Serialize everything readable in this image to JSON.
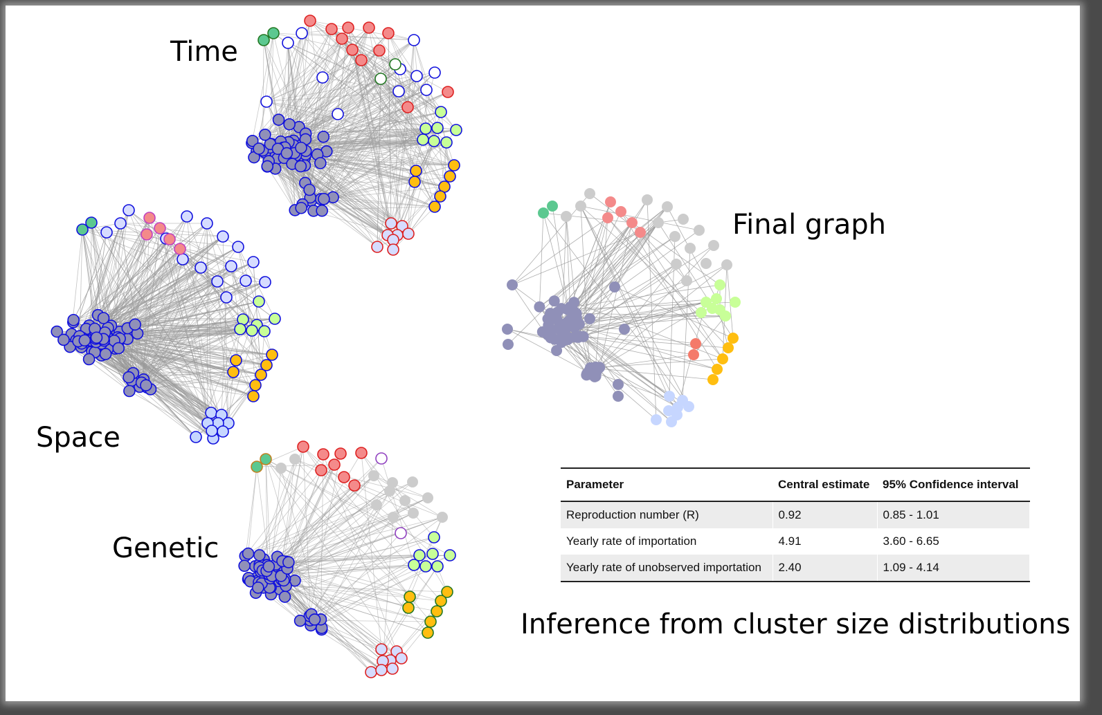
{
  "labels": {
    "time": "Time",
    "space": "Space",
    "genetic": "Genetic",
    "final": "Final graph"
  },
  "table": {
    "headers": [
      "Parameter",
      "Central estimate",
      "95% Confidence interval"
    ],
    "rows": [
      {
        "parameter": "Reproduction number (R)",
        "estimate": "0.92",
        "ci": "0.85 - 1.01"
      },
      {
        "parameter": "Yearly rate of importation",
        "estimate": "4.91",
        "ci": "3.60 - 6.65"
      },
      {
        "parameter": "Yearly rate of unobserved importation",
        "estimate": "2.40",
        "ci": "1.09 - 4.14"
      }
    ]
  },
  "caption": "Inference from cluster size distributions",
  "colors": {
    "main_fill": "#9090b8",
    "main_stroke": "#1010dd",
    "red": "#f48a8a",
    "red_stroke": "#dd2020",
    "green": "#5cc890",
    "lightgreen": "#c8ff98",
    "orange": "#ffbe10",
    "salmon": "#f47a6a",
    "lightblue": "#c6d6ff",
    "grey": "#cccccc",
    "edge": "#9a9a9a"
  }
}
